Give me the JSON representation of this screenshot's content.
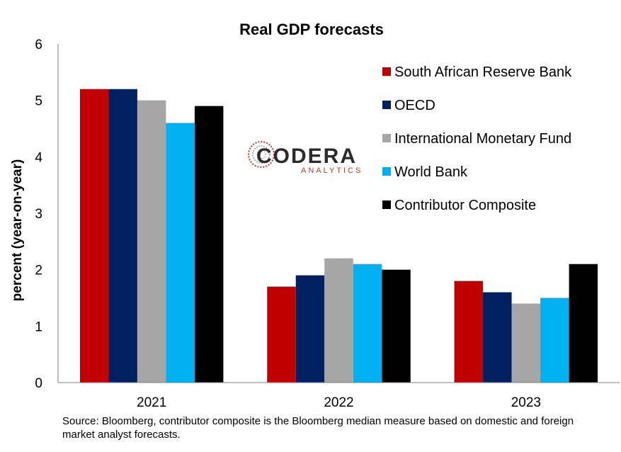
{
  "chart_data": {
    "type": "bar",
    "title": "Real GDP forecasts",
    "xlabel": "",
    "ylabel": "percent (year-on-year)",
    "categories": [
      "2021",
      "2022",
      "2023"
    ],
    "ylim": [
      0,
      6
    ],
    "yticks": [
      "0",
      "1",
      "2",
      "3",
      "4",
      "5",
      "6"
    ],
    "grid": false,
    "legend_position": "top-right",
    "series": [
      {
        "name": "South African Reserve Bank",
        "color": "#c00000",
        "values": [
          5.2,
          1.7,
          1.8
        ]
      },
      {
        "name": "OECD",
        "color": "#002060",
        "values": [
          5.2,
          1.9,
          1.6
        ]
      },
      {
        "name": "International Monetary Fund",
        "color": "#a6a6a6",
        "values": [
          5.0,
          2.2,
          1.4
        ]
      },
      {
        "name": "World Bank",
        "color": "#00b0f0",
        "values": [
          4.6,
          2.1,
          1.5
        ]
      },
      {
        "name": "Contributor Composite",
        "color": "#000000",
        "values": [
          4.9,
          2.0,
          2.1
        ]
      }
    ]
  },
  "logo": {
    "name": "CODERA",
    "tagline": "ANALYTICS",
    "icon": "codera-logo-icon",
    "color": "#2b2b2b",
    "accent": "#c0392b"
  },
  "source_note": "Source: Bloomberg, contributor composite is the Bloomberg median measure based on domestic and foreign market analyst forecasts."
}
